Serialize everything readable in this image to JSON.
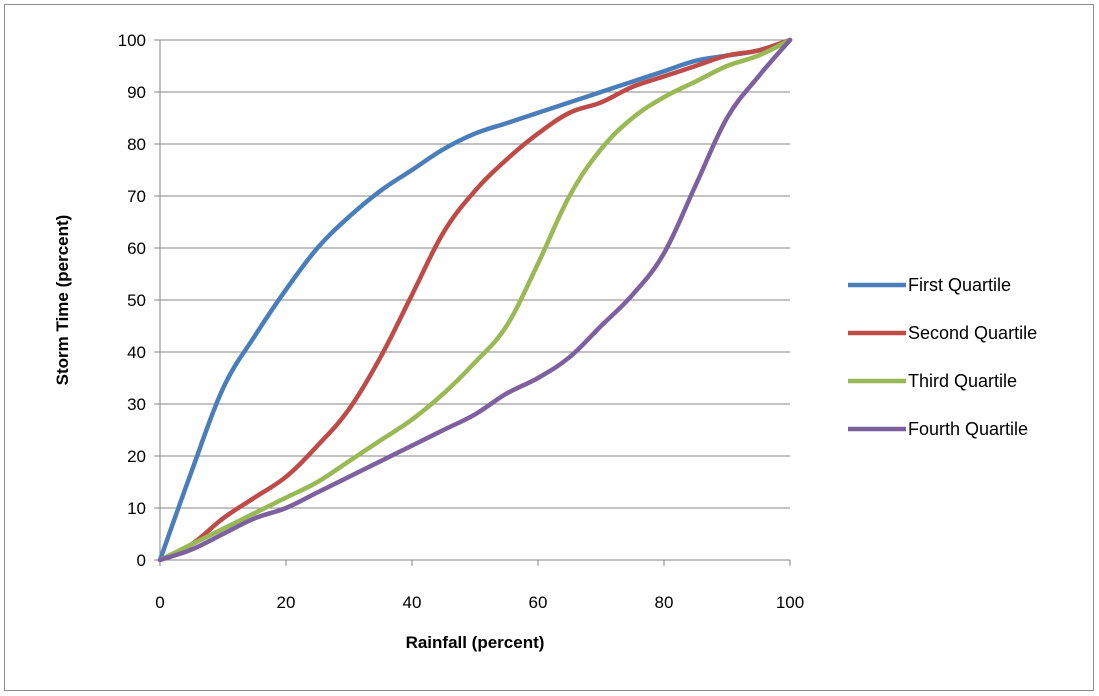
{
  "chart_data": {
    "type": "line",
    "title": "",
    "xlabel": "Rainfall (percent)",
    "ylabel": "Storm Time (percent)",
    "xlim": [
      0,
      100
    ],
    "ylim": [
      0,
      100
    ],
    "xticks": [
      "0",
      "20",
      "40",
      "60",
      "80",
      "100"
    ],
    "yticks": [
      "0",
      "10",
      "20",
      "30",
      "40",
      "50",
      "60",
      "70",
      "80",
      "90",
      "100"
    ],
    "grid": "horizontal",
    "legend_position": "right",
    "series": [
      {
        "name": "First Quartile",
        "color": "#4a7ebb",
        "points": [
          [
            0,
            0
          ],
          [
            5,
            17
          ],
          [
            10,
            33
          ],
          [
            15,
            43
          ],
          [
            20,
            52
          ],
          [
            25,
            60
          ],
          [
            30,
            66
          ],
          [
            35,
            71
          ],
          [
            40,
            75
          ],
          [
            45,
            79
          ],
          [
            50,
            82
          ],
          [
            55,
            84
          ],
          [
            60,
            86
          ],
          [
            65,
            88
          ],
          [
            70,
            90
          ],
          [
            75,
            92
          ],
          [
            80,
            94
          ],
          [
            85,
            96
          ],
          [
            90,
            97
          ],
          [
            95,
            98
          ],
          [
            100,
            100
          ]
        ]
      },
      {
        "name": "Second Quartile",
        "color": "#be4b48",
        "points": [
          [
            0,
            0
          ],
          [
            5,
            3
          ],
          [
            10,
            8
          ],
          [
            15,
            12
          ],
          [
            20,
            16
          ],
          [
            25,
            22
          ],
          [
            30,
            29
          ],
          [
            35,
            39
          ],
          [
            40,
            51
          ],
          [
            45,
            63
          ],
          [
            50,
            71
          ],
          [
            55,
            77
          ],
          [
            60,
            82
          ],
          [
            65,
            86
          ],
          [
            70,
            88
          ],
          [
            75,
            91
          ],
          [
            80,
            93
          ],
          [
            85,
            95
          ],
          [
            90,
            97
          ],
          [
            95,
            98
          ],
          [
            100,
            100
          ]
        ]
      },
      {
        "name": "Third Quartile",
        "color": "#98b954",
        "points": [
          [
            0,
            0
          ],
          [
            5,
            3
          ],
          [
            10,
            6
          ],
          [
            15,
            9
          ],
          [
            20,
            12
          ],
          [
            25,
            15
          ],
          [
            30,
            19
          ],
          [
            35,
            23
          ],
          [
            40,
            27
          ],
          [
            45,
            32
          ],
          [
            50,
            38
          ],
          [
            55,
            45
          ],
          [
            60,
            57
          ],
          [
            65,
            70
          ],
          [
            70,
            79
          ],
          [
            75,
            85
          ],
          [
            80,
            89
          ],
          [
            85,
            92
          ],
          [
            90,
            95
          ],
          [
            95,
            97
          ],
          [
            100,
            100
          ]
        ]
      },
      {
        "name": "Fourth Quartile",
        "color": "#7d60a0",
        "points": [
          [
            0,
            0
          ],
          [
            5,
            2
          ],
          [
            10,
            5
          ],
          [
            15,
            8
          ],
          [
            20,
            10
          ],
          [
            25,
            13
          ],
          [
            30,
            16
          ],
          [
            35,
            19
          ],
          [
            40,
            22
          ],
          [
            45,
            25
          ],
          [
            50,
            28
          ],
          [
            55,
            32
          ],
          [
            60,
            35
          ],
          [
            65,
            39
          ],
          [
            70,
            45
          ],
          [
            75,
            51
          ],
          [
            80,
            59
          ],
          [
            85,
            72
          ],
          [
            90,
            85
          ],
          [
            95,
            93
          ],
          [
            100,
            100
          ]
        ]
      }
    ]
  }
}
